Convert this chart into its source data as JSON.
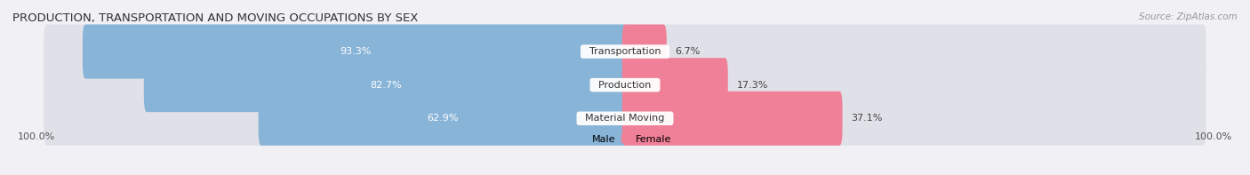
{
  "title": "PRODUCTION, TRANSPORTATION AND MOVING OCCUPATIONS BY SEX",
  "source": "Source: ZipAtlas.com",
  "categories": [
    "Transportation",
    "Production",
    "Material Moving"
  ],
  "male_values": [
    93.3,
    82.7,
    62.9
  ],
  "female_values": [
    6.7,
    17.3,
    37.1
  ],
  "male_color": "#88b4d8",
  "female_color": "#f08098",
  "male_color_light": "#a8cce8",
  "female_color_light": "#f4b8cc",
  "label_color_male": "#ffffff",
  "label_color_female": "#555555",
  "category_label_color": "#333333",
  "bg_color": "#f0f0f5",
  "bar_bg_color": "#e0e0e8",
  "title_fontsize": 9.5,
  "source_fontsize": 7.5,
  "bar_label_fontsize": 8,
  "cat_label_fontsize": 8,
  "axis_label_fontsize": 8,
  "left_axis_label": "100.0%",
  "right_axis_label": "100.0%",
  "legend_male": "Male",
  "legend_female": "Female"
}
